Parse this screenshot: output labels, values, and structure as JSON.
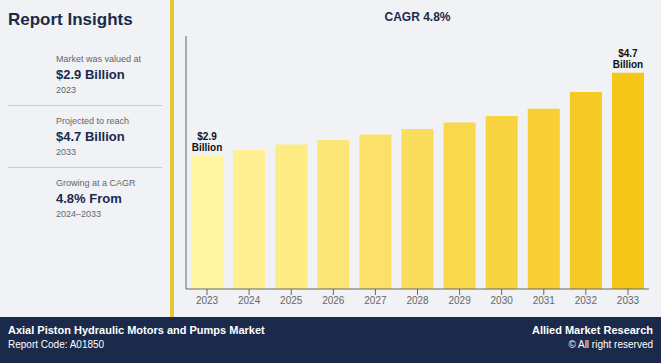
{
  "chart_data": {
    "type": "bar",
    "title": "Report Insights",
    "categories": [
      "2023",
      "2024",
      "2025",
      "2026",
      "2027",
      "2028",
      "2029",
      "2030",
      "2031",
      "2032",
      "2033"
    ],
    "values": [
      2.9,
      3.02,
      3.14,
      3.24,
      3.36,
      3.48,
      3.62,
      3.76,
      3.92,
      4.28,
      4.7
    ],
    "colors": [
      "#FFF5A0",
      "#FEF092",
      "#FDEB84",
      "#FCE677",
      "#FBE169",
      "#FADD5C",
      "#F9D84E",
      "#F8D340",
      "#F7CE33",
      "#F6C925",
      "#F5C518"
    ],
    "ylim": [
      0,
      5.5
    ],
    "tick_labels": "x",
    "grid": false,
    "annotations": [
      {
        "text": "$2.9\nBillion",
        "category": "2023"
      },
      {
        "text": "$4.7\nBillion",
        "category": "2033"
      },
      {
        "text": "CAGR 4.8%"
      }
    ],
    "side_panel": [
      {
        "sub": "Market was valued at",
        "main": "$2.9 Billion",
        "detail": "2023"
      },
      {
        "sub": "Projected to reach",
        "main": "$4.7 Billion",
        "detail": "2033"
      },
      {
        "sub": "Growing at a CAGR",
        "main": "4.8% From",
        "detail": "2024–2033"
      }
    ],
    "footer": {
      "left": [
        "Axial Piston Hydraulic Motors and Pumps Market",
        "Report Code: A01850"
      ],
      "right": [
        "Allied Market Research",
        "© All right reserved"
      ]
    }
  }
}
